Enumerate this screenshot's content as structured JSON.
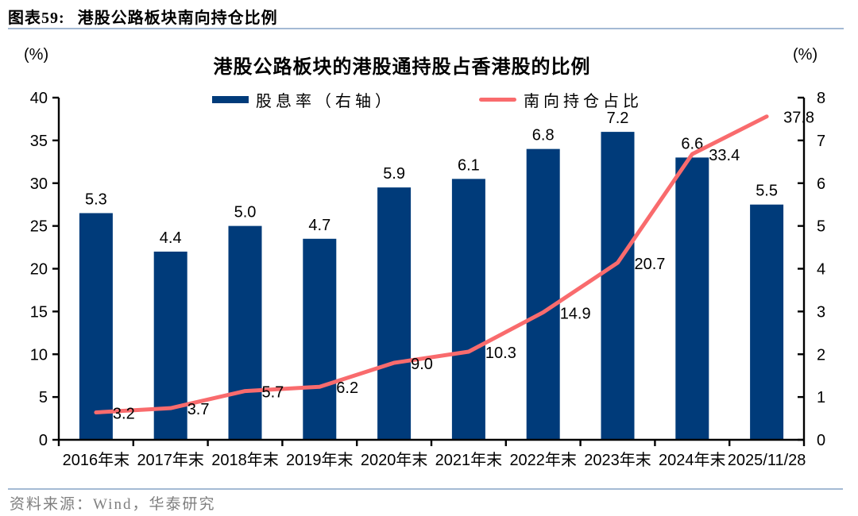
{
  "figure": {
    "label": "图表59:",
    "title": "港股公路板块南向持仓比例",
    "source": "资料来源：Wind，华泰研究"
  },
  "colors": {
    "rule": "#A4BAD4",
    "source_text": "#7F7F7F",
    "axis": "#000000",
    "bar": "#003B7A",
    "line": "#F96B6D"
  },
  "chart_data": {
    "type": "combo",
    "title": "港股公路板块的港股通持股占香港股的比例",
    "categories": [
      "2016年末",
      "2017年末",
      "2018年末",
      "2019年末",
      "2020年末",
      "2021年末",
      "2022年末",
      "2023年末",
      "2024年末",
      "2025/11/28"
    ],
    "series": [
      {
        "name": "股息率（右轴）",
        "type": "bar",
        "axis": "right",
        "color": "#003B7A",
        "values": [
          5.3,
          4.4,
          5.0,
          4.7,
          5.9,
          6.1,
          6.8,
          7.2,
          6.6,
          5.5
        ]
      },
      {
        "name": "南向持仓占比",
        "type": "line",
        "axis": "left",
        "color": "#F96B6D",
        "values": [
          3.2,
          3.7,
          5.7,
          6.2,
          9.0,
          10.3,
          14.9,
          20.7,
          33.4,
          37.8
        ]
      }
    ],
    "left_axis": {
      "label": "(%)",
      "min": 0,
      "max": 40,
      "step": 5
    },
    "right_axis": {
      "label": "(%)",
      "min": 0,
      "max": 8,
      "step": 1
    },
    "legend_position": "top",
    "grid": false
  }
}
